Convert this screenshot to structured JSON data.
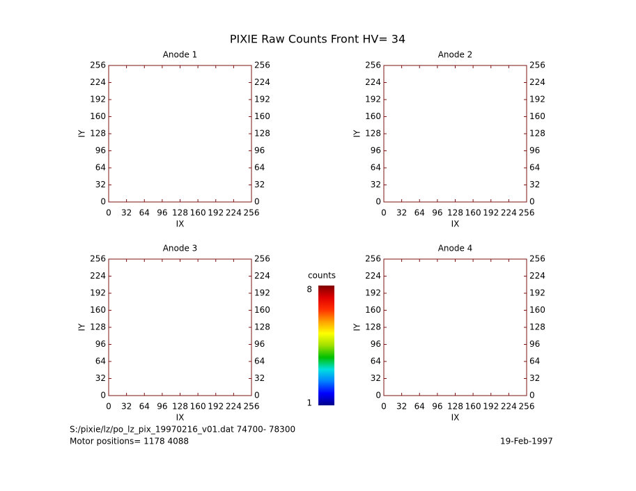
{
  "title": "PIXIE Raw Counts Front HV= 34",
  "footer": {
    "file": "S:/pixie/lz/po_lz_pix_19970216_v01.dat   74700- 78300",
    "motor": "Motor positions= 1178 4088",
    "date": "19-Feb-1997"
  },
  "colorbar": {
    "label": "counts",
    "ticks": [
      1,
      8
    ],
    "lim": [
      1,
      8
    ],
    "colors": [
      "#00008b",
      "#0000ff",
      "#0080ff",
      "#00e0e0",
      "#00c000",
      "#a0e000",
      "#ffff00",
      "#ffa000",
      "#ff3000",
      "#e00000",
      "#800000"
    ]
  },
  "chart_data": [
    {
      "type": "heatmap",
      "title": "Anode 1",
      "x_label": "IX",
      "y_label": "IY",
      "xlim": [
        0,
        256
      ],
      "ylim": [
        0,
        256
      ],
      "xticks": [
        0,
        32,
        64,
        96,
        128,
        160,
        192,
        224,
        256
      ],
      "yticks": [
        0,
        32,
        64,
        96,
        128,
        160,
        192,
        224,
        256
      ]
    },
    {
      "type": "heatmap",
      "title": "Anode 2",
      "x_label": "IX",
      "y_label": "IY",
      "xlim": [
        0,
        256
      ],
      "ylim": [
        0,
        256
      ],
      "xticks": [
        0,
        32,
        64,
        96,
        128,
        160,
        192,
        224,
        256
      ],
      "yticks": [
        0,
        32,
        64,
        96,
        128,
        160,
        192,
        224,
        256
      ]
    },
    {
      "type": "heatmap",
      "title": "Anode 3",
      "x_label": "IX",
      "y_label": "IY",
      "xlim": [
        0,
        256
      ],
      "ylim": [
        0,
        256
      ],
      "xticks": [
        0,
        32,
        64,
        96,
        128,
        160,
        192,
        224,
        256
      ],
      "yticks": [
        0,
        32,
        64,
        96,
        128,
        160,
        192,
        224,
        256
      ]
    },
    {
      "type": "heatmap",
      "title": "Anode 4",
      "x_label": "IX",
      "y_label": "IY",
      "xlim": [
        0,
        256
      ],
      "ylim": [
        0,
        256
      ],
      "xticks": [
        0,
        32,
        64,
        96,
        128,
        160,
        192,
        224,
        256
      ],
      "yticks": [
        0,
        32,
        64,
        96,
        128,
        160,
        192,
        224,
        256
      ]
    }
  ]
}
